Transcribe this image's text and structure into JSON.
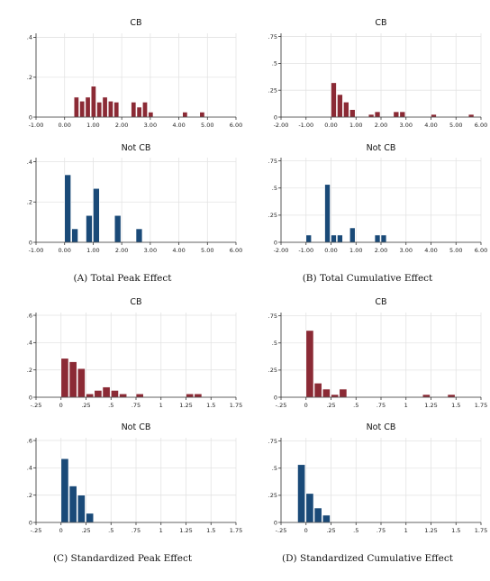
{
  "colors": {
    "cb": "#8b2a35",
    "notcb": "#1a4a78",
    "grid": "#e3e3e3",
    "axis": "#333333"
  },
  "panels": [
    {
      "caption": "(A) Total Peak Effect",
      "charts": [
        {
          "type": "bar",
          "title": "CB",
          "color_key": "cb",
          "xlim": [
            -1,
            6
          ],
          "ylim": [
            0,
            0.42
          ],
          "xticks": [
            -1,
            0,
            1,
            2,
            3,
            4,
            5,
            6
          ],
          "xtick_labels": [
            "-1.00",
            "0.00",
            "1.00",
            "2.00",
            "3.00",
            "4.00",
            "5.00",
            "6.00"
          ],
          "yticks": [
            0,
            0.2,
            0.4
          ],
          "ytick_labels": [
            "0",
            ".2",
            ".4"
          ],
          "bin_width": 0.2,
          "bins": [
            [
              0.15,
              0.1
            ],
            [
              0.35,
              0.08
            ],
            [
              0.55,
              0.1
            ],
            [
              0.75,
              0.155
            ],
            [
              0.95,
              0.075
            ],
            [
              1.15,
              0.1
            ],
            [
              1.35,
              0.08
            ],
            [
              1.55,
              0.075
            ],
            [
              2.15,
              0.075
            ],
            [
              2.35,
              0.05
            ],
            [
              2.55,
              0.075
            ],
            [
              2.75,
              0.025
            ],
            [
              3.95,
              0.025
            ],
            [
              4.55,
              0.025
            ]
          ],
          "bins_x_offset": 0.28
        },
        {
          "type": "bar",
          "title": "Not CB",
          "color_key": "notcb",
          "xlim": [
            -1,
            6
          ],
          "ylim": [
            0,
            0.42
          ],
          "xticks": [
            -1,
            0,
            1,
            2,
            3,
            4,
            5,
            6
          ],
          "xtick_labels": [
            "-1.00",
            "0.00",
            "1.00",
            "2.00",
            "3.00",
            "4.00",
            "5.00",
            "6.00"
          ],
          "yticks": [
            0,
            0.2,
            0.4
          ],
          "ytick_labels": [
            "0",
            ".2",
            ".4"
          ],
          "bin_width": 0.25,
          "bins": [
            [
              0.125,
              0.335
            ],
            [
              0.375,
              0.067
            ],
            [
              0.875,
              0.133
            ],
            [
              1.125,
              0.267
            ],
            [
              1.875,
              0.133
            ],
            [
              2.625,
              0.067
            ]
          ]
        }
      ]
    },
    {
      "caption": "(B) Total Cumulative Effect",
      "charts": [
        {
          "type": "bar",
          "title": "CB",
          "color_key": "cb",
          "xlim": [
            -2,
            6
          ],
          "ylim": [
            0,
            0.78
          ],
          "xticks": [
            -2,
            -1,
            0,
            1,
            2,
            3,
            4,
            5,
            6
          ],
          "xtick_labels": [
            "-2.00",
            "-1.00",
            "0.00",
            "1.00",
            "2.00",
            "3.00",
            "4.00",
            "5.00",
            "6.00"
          ],
          "yticks": [
            0,
            0.25,
            0.5,
            0.75
          ],
          "ytick_labels": [
            "0",
            ".25",
            ".5",
            ".75"
          ],
          "bin_width": 0.25,
          "bins": [
            [
              0.125,
              0.32
            ],
            [
              0.375,
              0.21
            ],
            [
              0.625,
              0.14
            ],
            [
              0.875,
              0.07
            ],
            [
              1.625,
              0.025
            ],
            [
              1.875,
              0.05
            ],
            [
              2.625,
              0.05
            ],
            [
              2.875,
              0.05
            ],
            [
              4.125,
              0.025
            ],
            [
              5.625,
              0.025
            ]
          ]
        },
        {
          "type": "bar",
          "title": "Not CB",
          "color_key": "notcb",
          "xlim": [
            -2,
            6
          ],
          "ylim": [
            0,
            0.78
          ],
          "xticks": [
            -2,
            -1,
            0,
            1,
            2,
            3,
            4,
            5,
            6
          ],
          "xtick_labels": [
            "-2.00",
            "-1.00",
            "0.00",
            "1.00",
            "2.00",
            "3.00",
            "4.00",
            "5.00",
            "6.00"
          ],
          "yticks": [
            0,
            0.25,
            0.5,
            0.75
          ],
          "ytick_labels": [
            "0",
            ".25",
            ".5",
            ".75"
          ],
          "bin_width": 0.25,
          "bins": [
            [
              -0.875,
              0.067
            ],
            [
              -0.125,
              0.533
            ],
            [
              0.125,
              0.067
            ],
            [
              0.375,
              0.067
            ],
            [
              0.875,
              0.133
            ],
            [
              1.875,
              0.067
            ],
            [
              2.125,
              0.067
            ]
          ]
        }
      ]
    },
    {
      "caption": "(C) Standardized Peak Effect",
      "charts": [
        {
          "type": "bar",
          "title": "CB",
          "color_key": "cb",
          "xlim": [
            -0.25,
            1.75
          ],
          "ylim": [
            0,
            0.62
          ],
          "xticks": [
            -0.25,
            0,
            0.25,
            0.5,
            0.75,
            1,
            1.25,
            1.5,
            1.75
          ],
          "xtick_labels": [
            "-.25",
            "0",
            ".25",
            ".5",
            ".75",
            "1",
            "1.25",
            "1.5",
            "1.75"
          ],
          "yticks": [
            0,
            0.2,
            0.4,
            0.6
          ],
          "ytick_labels": [
            "0",
            ".2",
            ".4",
            ".6"
          ],
          "bin_width": 0.0833,
          "bins": [
            [
              0.042,
              0.285
            ],
            [
              0.125,
              0.26
            ],
            [
              0.208,
              0.21
            ],
            [
              0.292,
              0.025
            ],
            [
              0.375,
              0.05
            ],
            [
              0.458,
              0.075
            ],
            [
              0.542,
              0.05
            ],
            [
              0.625,
              0.025
            ],
            [
              0.792,
              0.025
            ],
            [
              1.292,
              0.025
            ],
            [
              1.375,
              0.025
            ]
          ]
        },
        {
          "type": "bar",
          "title": "Not CB",
          "color_key": "notcb",
          "xlim": [
            -0.25,
            1.75
          ],
          "ylim": [
            0,
            0.62
          ],
          "xticks": [
            -0.25,
            0,
            0.25,
            0.5,
            0.75,
            1,
            1.25,
            1.5,
            1.75
          ],
          "xtick_labels": [
            "-.25",
            "0",
            ".25",
            ".5",
            ".75",
            "1",
            "1.25",
            "1.5",
            "1.75"
          ],
          "yticks": [
            0,
            0.2,
            0.4,
            0.6
          ],
          "ytick_labels": [
            "0",
            ".2",
            ".4",
            ".6"
          ],
          "bin_width": 0.0833,
          "bins": [
            [
              0.042,
              0.467
            ],
            [
              0.125,
              0.267
            ],
            [
              0.208,
              0.2
            ],
            [
              0.292,
              0.067
            ]
          ]
        }
      ]
    },
    {
      "caption": "(D) Standardized Cumulative Effect",
      "charts": [
        {
          "type": "bar",
          "title": "CB",
          "color_key": "cb",
          "xlim": [
            -0.25,
            1.75
          ],
          "ylim": [
            0,
            0.78
          ],
          "xticks": [
            -0.25,
            0,
            0.25,
            0.5,
            0.75,
            1,
            1.25,
            1.5,
            1.75
          ],
          "xtick_labels": [
            "-.25",
            "0",
            ".25",
            ".5",
            ".75",
            "1",
            "1.25",
            "1.5",
            "1.75"
          ],
          "yticks": [
            0,
            0.25,
            0.5,
            0.75
          ],
          "ytick_labels": [
            "0",
            ".25",
            ".5",
            ".75"
          ],
          "bin_width": 0.0833,
          "bins": [
            [
              0.042,
              0.615
            ],
            [
              0.125,
              0.13
            ],
            [
              0.208,
              0.075
            ],
            [
              0.292,
              0.025
            ],
            [
              0.375,
              0.075
            ],
            [
              1.208,
              0.025
            ],
            [
              1.458,
              0.025
            ]
          ]
        },
        {
          "type": "bar",
          "title": "Not CB",
          "color_key": "notcb",
          "xlim": [
            -0.25,
            1.75
          ],
          "ylim": [
            0,
            0.78
          ],
          "xticks": [
            -0.25,
            0,
            0.25,
            0.5,
            0.75,
            1,
            1.25,
            1.5,
            1.75
          ],
          "xtick_labels": [
            "-.25",
            "0",
            ".25",
            ".5",
            ".75",
            "1",
            "1.25",
            "1.5",
            "1.75"
          ],
          "yticks": [
            0,
            0.25,
            0.5,
            0.75
          ],
          "ytick_labels": [
            "0",
            ".25",
            ".5",
            ".75"
          ],
          "bin_width": 0.0833,
          "bins": [
            [
              -0.042,
              0.533
            ],
            [
              0.042,
              0.267
            ],
            [
              0.125,
              0.133
            ],
            [
              0.208,
              0.067
            ]
          ]
        }
      ]
    }
  ],
  "chart_data": [
    {
      "type": "bar",
      "panel": "(A) Total Peak Effect",
      "title": "CB",
      "x": [
        0.15,
        0.35,
        0.55,
        0.75,
        0.95,
        1.15,
        1.35,
        1.55,
        2.15,
        2.35,
        2.55,
        2.75,
        3.95,
        4.55
      ],
      "values": [
        0.1,
        0.08,
        0.1,
        0.155,
        0.075,
        0.1,
        0.08,
        0.075,
        0.075,
        0.05,
        0.075,
        0.025,
        0.025,
        0.025
      ],
      "xlim": [
        -1,
        6
      ],
      "ylim": [
        0,
        0.4
      ]
    },
    {
      "type": "bar",
      "panel": "(A) Total Peak Effect",
      "title": "Not CB",
      "x": [
        0.125,
        0.375,
        0.875,
        1.125,
        1.875,
        2.625
      ],
      "values": [
        0.335,
        0.067,
        0.133,
        0.267,
        0.133,
        0.067
      ],
      "xlim": [
        -1,
        6
      ],
      "ylim": [
        0,
        0.4
      ]
    },
    {
      "type": "bar",
      "panel": "(B) Total Cumulative Effect",
      "title": "CB",
      "x": [
        0.125,
        0.375,
        0.625,
        0.875,
        1.625,
        1.875,
        2.625,
        2.875,
        4.125,
        5.625
      ],
      "values": [
        0.32,
        0.21,
        0.14,
        0.07,
        0.025,
        0.05,
        0.05,
        0.05,
        0.025,
        0.025
      ],
      "xlim": [
        -2,
        6
      ],
      "ylim": [
        0,
        0.75
      ]
    },
    {
      "type": "bar",
      "panel": "(B) Total Cumulative Effect",
      "title": "Not CB",
      "x": [
        -0.875,
        -0.125,
        0.125,
        0.375,
        0.875,
        1.875,
        2.125
      ],
      "values": [
        0.067,
        0.533,
        0.067,
        0.067,
        0.133,
        0.067,
        0.067
      ],
      "xlim": [
        -2,
        6
      ],
      "ylim": [
        0,
        0.75
      ]
    },
    {
      "type": "bar",
      "panel": "(C) Standardized Peak Effect",
      "title": "CB",
      "x": [
        0.042,
        0.125,
        0.208,
        0.292,
        0.375,
        0.458,
        0.542,
        0.625,
        0.792,
        1.292,
        1.375
      ],
      "values": [
        0.285,
        0.26,
        0.21,
        0.025,
        0.05,
        0.075,
        0.05,
        0.025,
        0.025,
        0.025,
        0.025
      ],
      "xlim": [
        -0.25,
        1.75
      ],
      "ylim": [
        0,
        0.6
      ]
    },
    {
      "type": "bar",
      "panel": "(C) Standardized Peak Effect",
      "title": "Not CB",
      "x": [
        0.042,
        0.125,
        0.208,
        0.292
      ],
      "values": [
        0.467,
        0.267,
        0.2,
        0.067
      ],
      "xlim": [
        -0.25,
        1.75
      ],
      "ylim": [
        0,
        0.6
      ]
    },
    {
      "type": "bar",
      "panel": "(D) Standardized Cumulative Effect",
      "title": "CB",
      "x": [
        0.042,
        0.125,
        0.208,
        0.292,
        0.375,
        1.208,
        1.458
      ],
      "values": [
        0.615,
        0.13,
        0.075,
        0.025,
        0.075,
        0.025,
        0.025
      ],
      "xlim": [
        -0.25,
        1.75
      ],
      "ylim": [
        0,
        0.75
      ]
    },
    {
      "type": "bar",
      "panel": "(D) Standardized Cumulative Effect",
      "title": "Not CB",
      "x": [
        -0.042,
        0.042,
        0.125,
        0.208
      ],
      "values": [
        0.533,
        0.267,
        0.133,
        0.067
      ],
      "xlim": [
        -0.25,
        1.75
      ],
      "ylim": [
        0,
        0.75
      ]
    }
  ]
}
